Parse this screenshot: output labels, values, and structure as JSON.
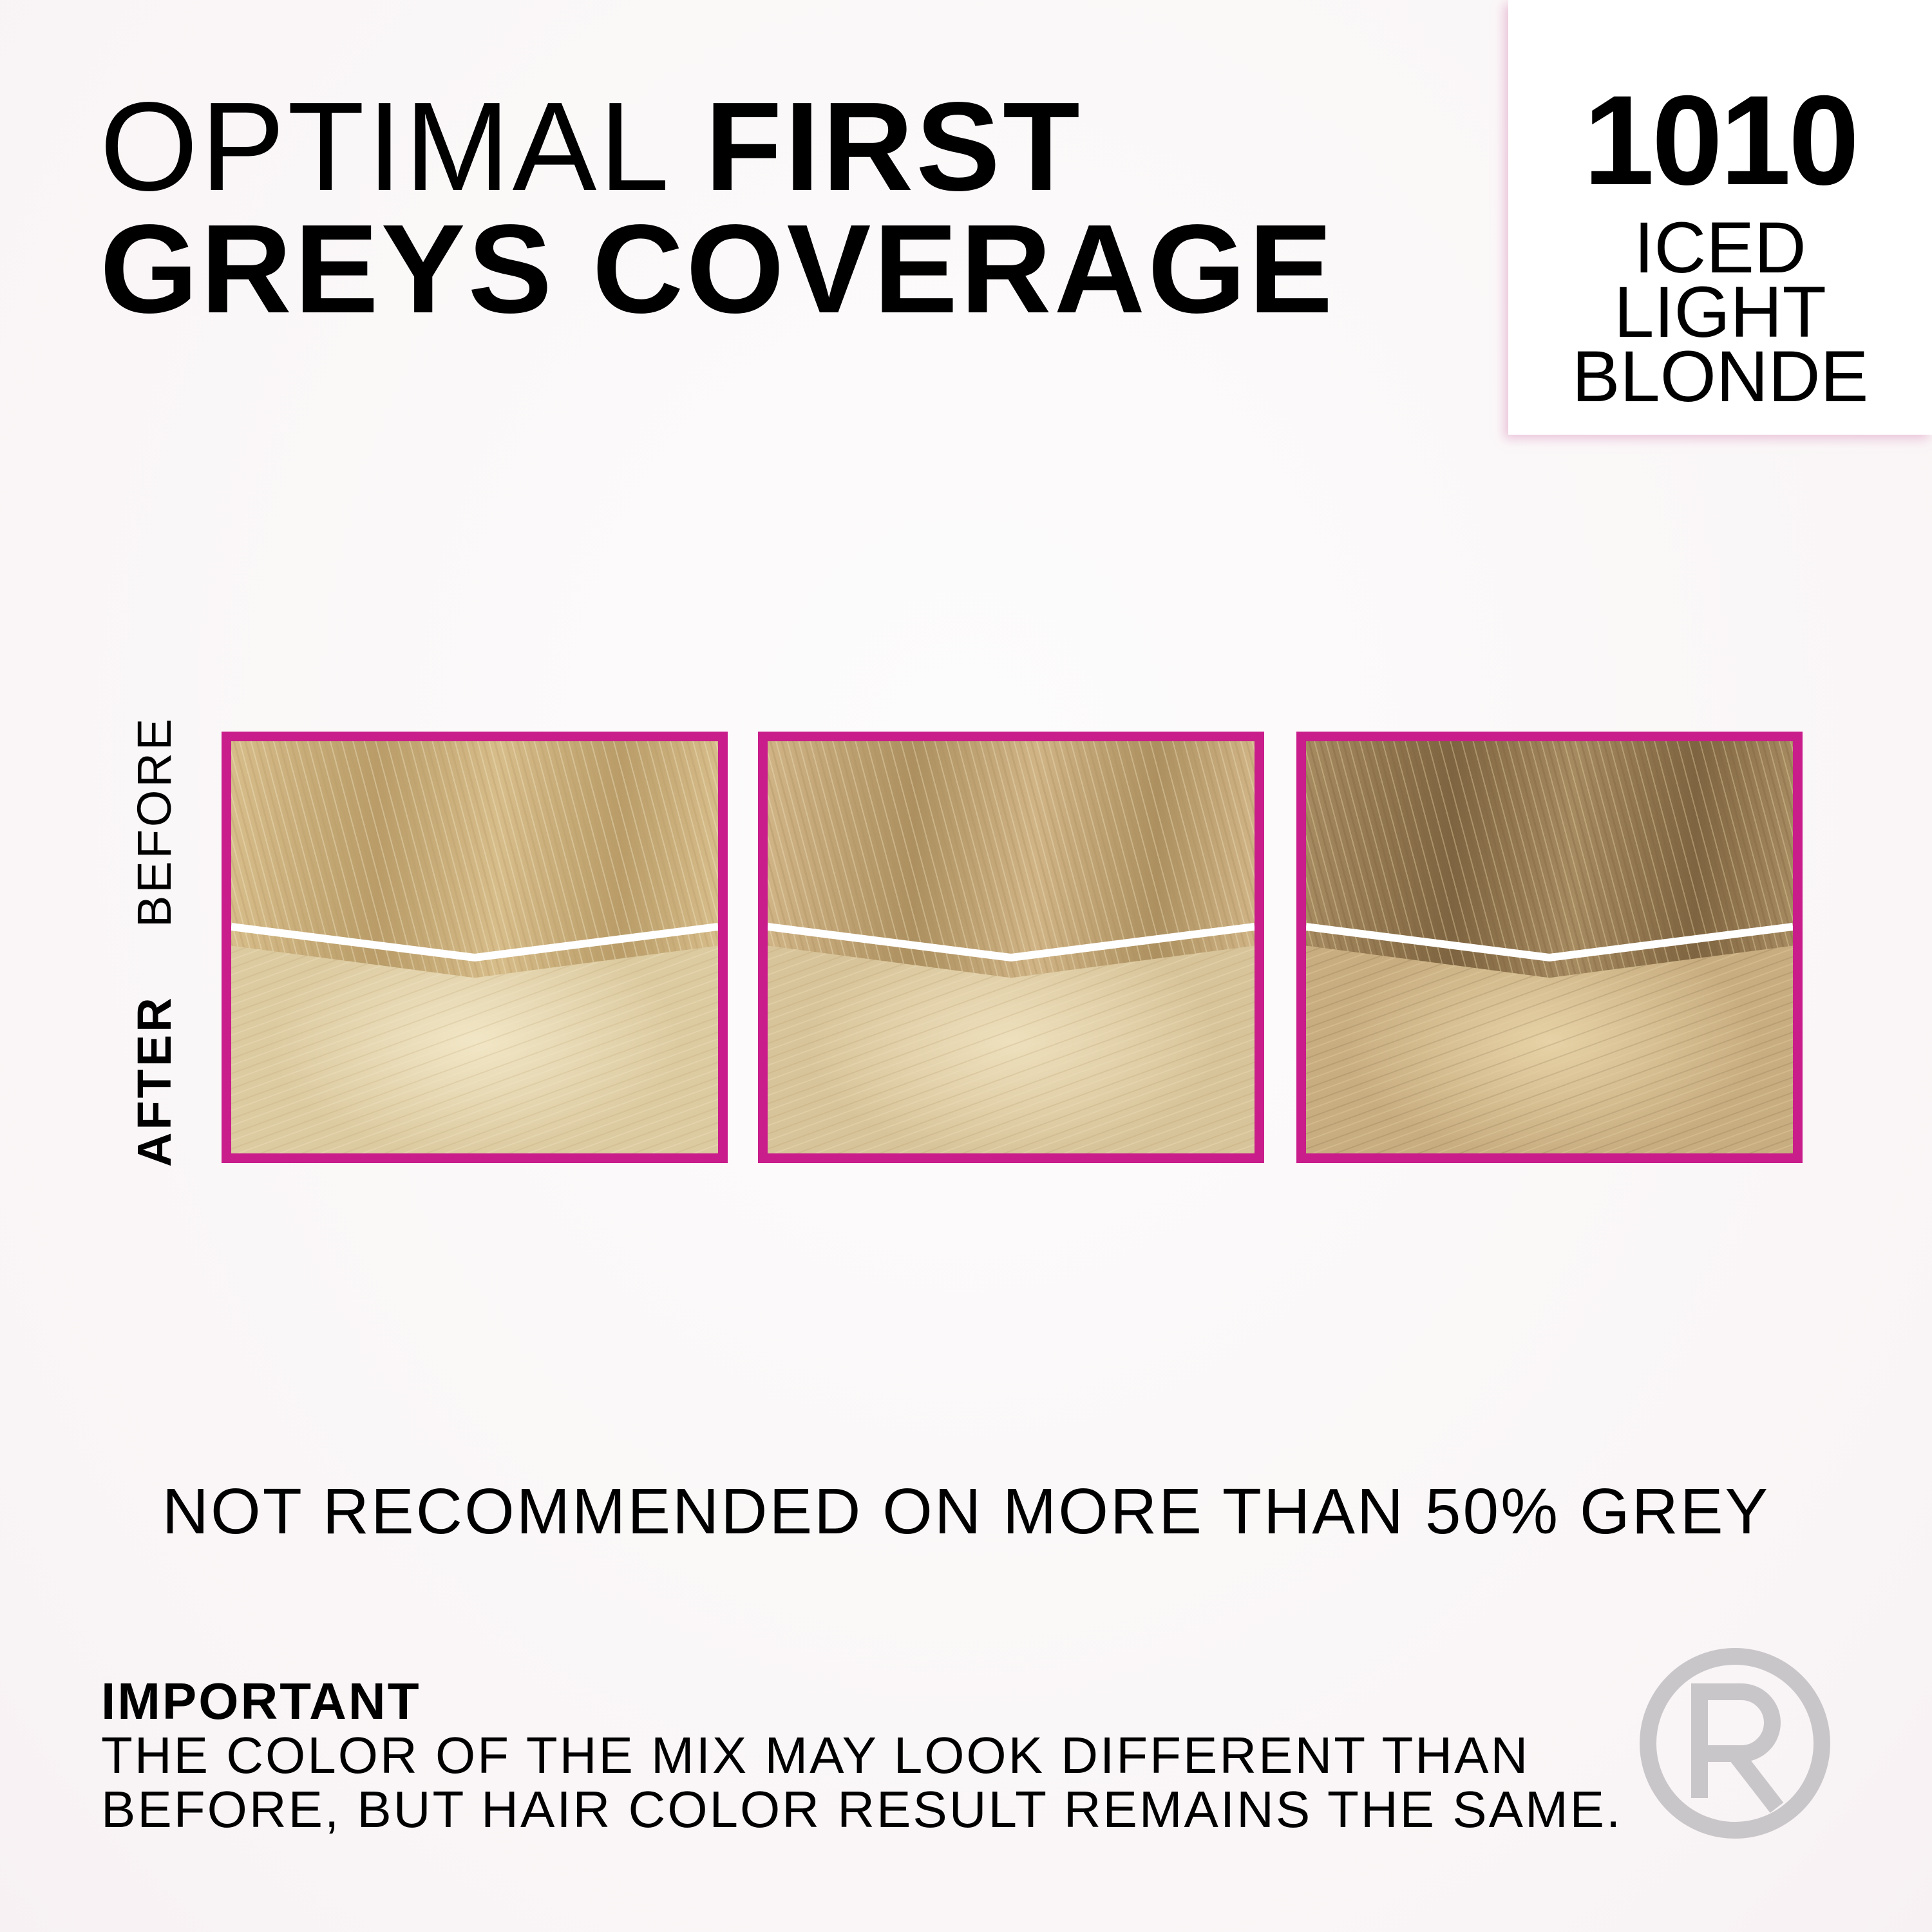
{
  "header": {
    "title_light": "OPTIMAL",
    "title_bold_1": "FIRST",
    "title_bold_2": "GREYS COVERAGE"
  },
  "shade": {
    "number": "1010",
    "name_lines": [
      "ICED",
      "LIGHT",
      "BLONDE"
    ]
  },
  "labels": {
    "before": "BEFORE",
    "after": "AFTER"
  },
  "colors": {
    "accent_border": "#c81d8b",
    "logo_gray": "#c9c6c9"
  },
  "panels": [
    {
      "before_color": "#d7bd8a",
      "before_dark": "#b99c68",
      "after_color": "#dccaa0",
      "after_light": "#f1e6c6"
    },
    {
      "before_color": "#d0b486",
      "before_dark": "#ad905f",
      "after_color": "#d8c49a",
      "after_light": "#eee0bd"
    },
    {
      "before_color": "#a68a60",
      "before_dark": "#7e6440",
      "after_color": "#c8ad80",
      "after_light": "#e6d2a6"
    }
  ],
  "note": "NOT RECOMMENDED ON MORE THAN 50% GREY",
  "important": {
    "heading": "IMPORTANT",
    "lines": [
      "THE COLOR OF THE MIX MAY LOOK DIFFERENT THAN",
      "BEFORE, BUT HAIR COLOR RESULT REMAINS THE SAME."
    ]
  },
  "logo": {
    "letter": "R",
    "icon": "registered-r-logo"
  }
}
